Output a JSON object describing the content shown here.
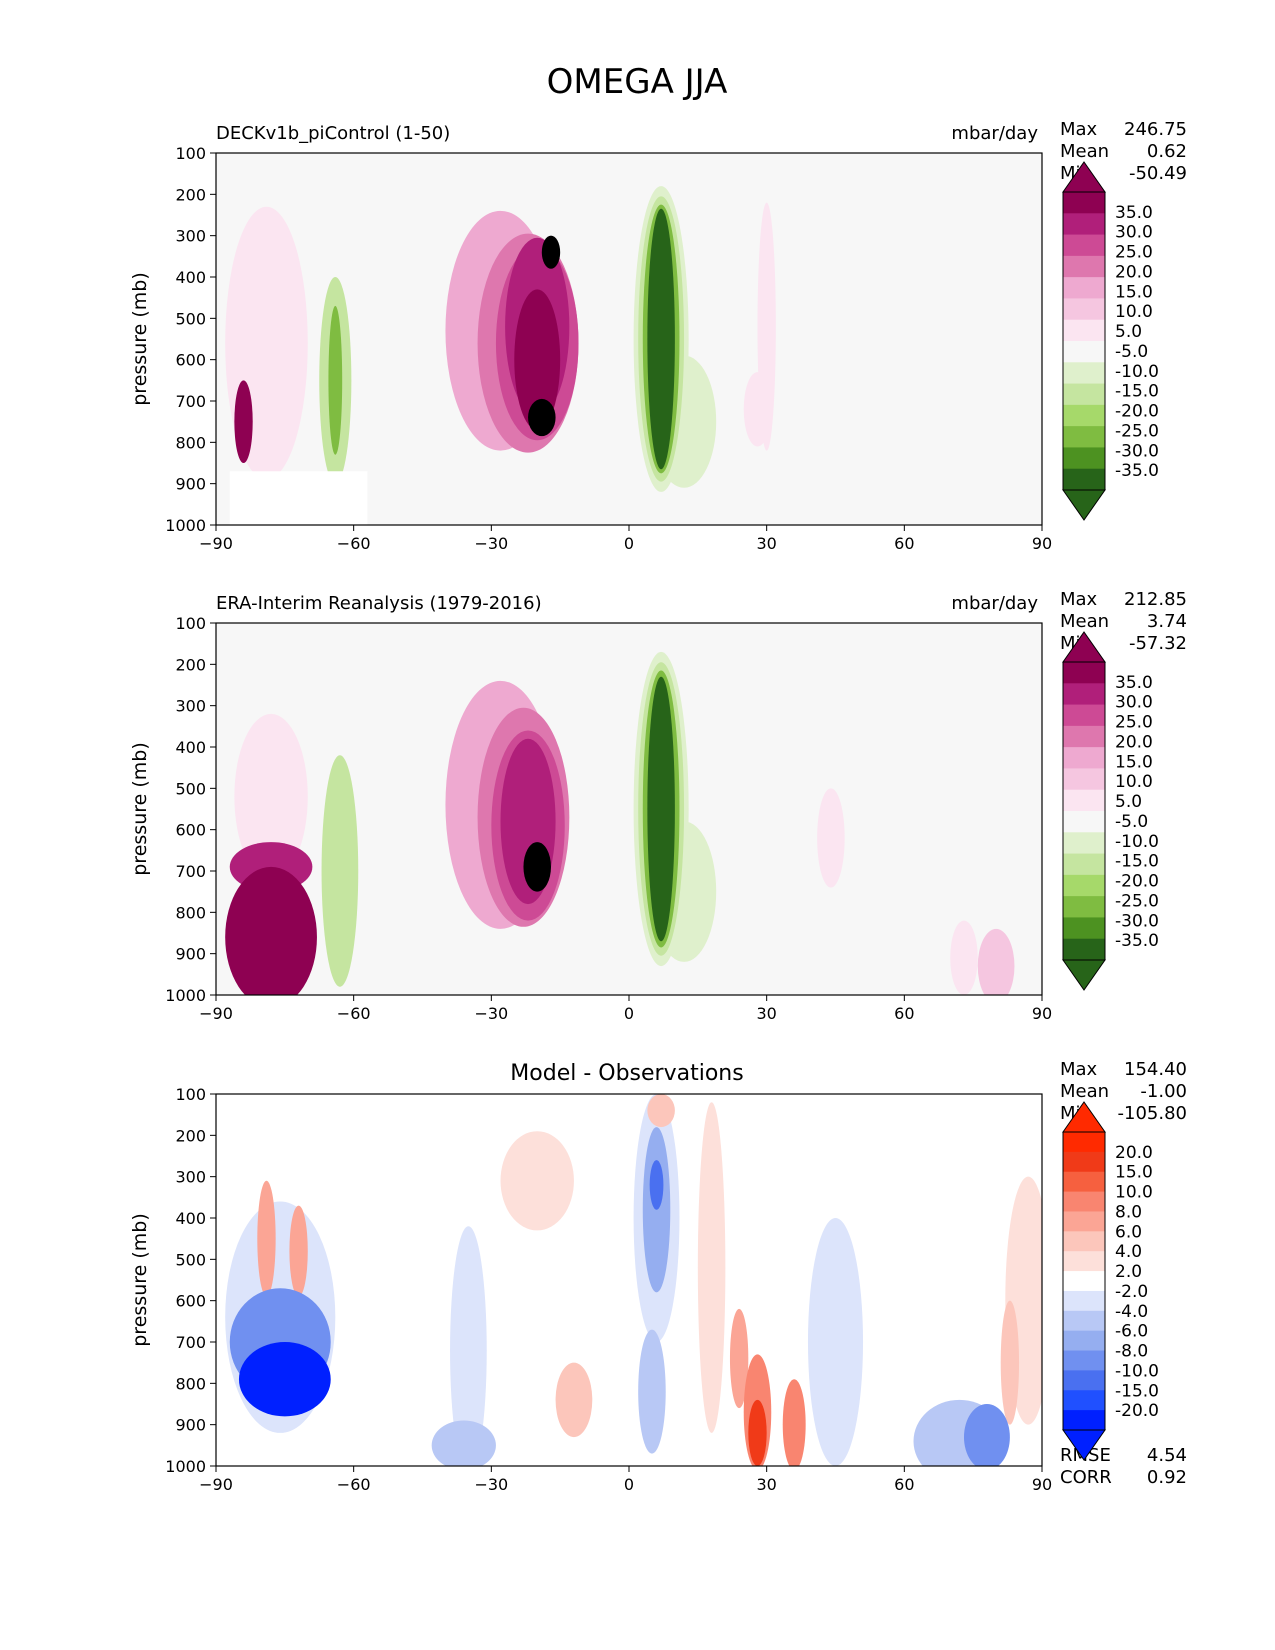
{
  "title": "OMEGA JJA",
  "colors": {
    "model_levels": [
      "#276419",
      "#4d9221",
      "#7fbc41",
      "#a6d96a",
      "#c5e5a0",
      "#dff0cc",
      "#f7f7f7",
      "#fbe5f1",
      "#f5c6e0",
      "#eea9d0",
      "#de77ae",
      "#cd4a95",
      "#b01f7a",
      "#8e0152"
    ],
    "diff_levels": [
      "#0020ff",
      "#2050ff",
      "#4a70f0",
      "#7090f0",
      "#95aef0",
      "#b8c8f5",
      "#dce4fb",
      "#ffffff",
      "#fde0da",
      "#fcc6bb",
      "#fba595",
      "#f98570",
      "#f6603f",
      "#f03a18",
      "#ff2a00"
    ]
  },
  "chart_data": [
    {
      "type": "heatmap",
      "title": "DECKv1b_piControl (1-50)",
      "units": "mbar/day",
      "ylabel": "pressure (mb)",
      "xlim": [
        -90,
        90
      ],
      "ylim": [
        1000,
        100
      ],
      "x_ticks": [
        "−90",
        "−60",
        "−30",
        "0",
        "30",
        "60",
        "90"
      ],
      "y_ticks": [
        "100",
        "200",
        "300",
        "400",
        "500",
        "600",
        "700",
        "800",
        "900",
        "1000"
      ],
      "stats": [
        {
          "label": "Max",
          "value": "246.75"
        },
        {
          "label": "Mean",
          "value": "0.62"
        },
        {
          "label": "Min",
          "value": "-50.49"
        }
      ],
      "colorbar_labels": [
        "35.0",
        "30.0",
        "25.0",
        "20.0",
        "15.0",
        "10.0",
        "5.0",
        "-5.0",
        "-10.0",
        "-15.0",
        "-20.0",
        "-25.0",
        "-30.0",
        "-35.0"
      ],
      "blobs": [
        {
          "lat": -28,
          "lev": 530,
          "rlat": 12,
          "rlev": 290,
          "level": 3
        },
        {
          "lat": -22,
          "lev": 560,
          "rlat": 11,
          "rlev": 265,
          "level": 4
        },
        {
          "lat": -20,
          "lev": 560,
          "rlat": 9,
          "rlev": 235,
          "level": 5
        },
        {
          "lat": -20,
          "lev": 520,
          "rlat": 7,
          "rlev": 215,
          "level": 6
        },
        {
          "lat": -20,
          "lev": 600,
          "rlat": 5,
          "rlev": 170,
          "level": 7
        },
        {
          "lat": -19,
          "lev": 740,
          "rlat": 3,
          "rlev": 45,
          "level": 9
        },
        {
          "lat": -17,
          "lev": 340,
          "rlat": 2,
          "rlev": 40,
          "level": 9
        },
        {
          "lat": 7,
          "lev": 560,
          "rlat": 8,
          "rlev": 400,
          "level": -1
        },
        {
          "lat": 7,
          "lev": 550,
          "rlat": 6,
          "rlev": 370,
          "level": -2
        },
        {
          "lat": 7,
          "lev": 550,
          "rlat": 5,
          "rlev": 345,
          "level": -3
        },
        {
          "lat": 7,
          "lev": 550,
          "rlat": 4,
          "rlev": 325,
          "level": -5
        },
        {
          "lat": 7,
          "lev": 550,
          "rlat": 3,
          "rlev": 315,
          "level": -7
        },
        {
          "lat": 12,
          "lev": 750,
          "rlat": 7,
          "rlev": 160,
          "level": -2
        },
        {
          "lat": -64,
          "lev": 580,
          "rlat": 6,
          "rlev": 330,
          "level": -1
        },
        {
          "lat": -64,
          "lev": 650,
          "rlat": 3.5,
          "rlev": 250,
          "level": -3
        },
        {
          "lat": -64,
          "lev": 650,
          "rlat": 1.5,
          "rlev": 180,
          "level": -5
        },
        {
          "lat": -79,
          "lev": 560,
          "rlat": 9,
          "rlev": 330,
          "level": 1
        },
        {
          "lat": -84,
          "lev": 750,
          "rlat": 2,
          "rlev": 100,
          "level": 7
        },
        {
          "lat": -50,
          "lev": 960,
          "rlat": 8,
          "rlev": 40,
          "level": -1
        },
        {
          "lat": 58,
          "lev": 660,
          "rlat": 5,
          "rlev": 340,
          "level": -1
        },
        {
          "lat": 30,
          "lev": 520,
          "rlat": 2,
          "rlev": 300,
          "level": 1
        },
        {
          "lat": 28,
          "lev": 720,
          "rlat": 3,
          "rlev": 90,
          "level": 1
        }
      ]
    },
    {
      "type": "heatmap",
      "title": "ERA-Interim Reanalysis (1979-2016)",
      "units": "mbar/day",
      "ylabel": "pressure (mb)",
      "xlim": [
        -90,
        90
      ],
      "ylim": [
        1000,
        100
      ],
      "x_ticks": [
        "−90",
        "−60",
        "−30",
        "0",
        "30",
        "60",
        "90"
      ],
      "y_ticks": [
        "100",
        "200",
        "300",
        "400",
        "500",
        "600",
        "700",
        "800",
        "900",
        "1000"
      ],
      "stats": [
        {
          "label": "Max",
          "value": "212.85"
        },
        {
          "label": "Mean",
          "value": "3.74"
        },
        {
          "label": "Min",
          "value": "-57.32"
        }
      ],
      "colorbar_labels": [
        "35.0",
        "30.0",
        "25.0",
        "20.0",
        "15.0",
        "10.0",
        "5.0",
        "-5.0",
        "-10.0",
        "-15.0",
        "-20.0",
        "-25.0",
        "-30.0",
        "-35.0"
      ],
      "blobs": [
        {
          "lat": -28,
          "lev": 540,
          "rlat": 12,
          "rlev": 300,
          "level": 3
        },
        {
          "lat": -23,
          "lev": 570,
          "rlat": 10,
          "rlev": 265,
          "level": 4
        },
        {
          "lat": -22,
          "lev": 590,
          "rlat": 8,
          "rlev": 230,
          "level": 5
        },
        {
          "lat": -22,
          "lev": 580,
          "rlat": 6,
          "rlev": 200,
          "level": 6
        },
        {
          "lat": -20,
          "lev": 690,
          "rlat": 3,
          "rlev": 60,
          "level": 9
        },
        {
          "lat": 7,
          "lev": 560,
          "rlat": 8,
          "rlev": 410,
          "level": -1
        },
        {
          "lat": 7,
          "lev": 550,
          "rlat": 6,
          "rlev": 380,
          "level": -2
        },
        {
          "lat": 7,
          "lev": 550,
          "rlat": 5,
          "rlev": 355,
          "level": -3
        },
        {
          "lat": 7,
          "lev": 550,
          "rlat": 4,
          "rlev": 335,
          "level": -5
        },
        {
          "lat": 7,
          "lev": 550,
          "rlat": 3,
          "rlev": 320,
          "level": -7
        },
        {
          "lat": 12,
          "lev": 750,
          "rlat": 7,
          "rlev": 170,
          "level": -2
        },
        {
          "lat": -62,
          "lev": 650,
          "rlat": 7,
          "rlev": 380,
          "level": -1
        },
        {
          "lat": -63,
          "lev": 700,
          "rlat": 4,
          "rlev": 280,
          "level": -3
        },
        {
          "lat": -78,
          "lev": 520,
          "rlat": 8,
          "rlev": 200,
          "level": 1
        },
        {
          "lat": -78,
          "lev": 860,
          "rlat": 10,
          "rlev": 170,
          "level": 7
        },
        {
          "lat": -78,
          "lev": 690,
          "rlat": 9,
          "rlev": 60,
          "level": 6
        },
        {
          "lat": 63,
          "lev": 580,
          "rlat": 2,
          "rlev": 80,
          "level": -1
        },
        {
          "lat": 80,
          "lev": 930,
          "rlat": 4,
          "rlev": 90,
          "level": 2
        },
        {
          "lat": 73,
          "lev": 910,
          "rlat": 3,
          "rlev": 90,
          "level": 1
        },
        {
          "lat": 44,
          "lev": 620,
          "rlat": 3,
          "rlev": 120,
          "level": 1
        }
      ]
    },
    {
      "type": "heatmap",
      "title": "Model - Observations",
      "ylabel": "pressure (mb)",
      "xlim": [
        -90,
        90
      ],
      "ylim": [
        1000,
        100
      ],
      "x_ticks": [
        "−90",
        "−60",
        "−30",
        "0",
        "30",
        "60",
        "90"
      ],
      "y_ticks": [
        "100",
        "200",
        "300",
        "400",
        "500",
        "600",
        "700",
        "800",
        "900",
        "1000"
      ],
      "stats": [
        {
          "label": "Max",
          "value": "154.40"
        },
        {
          "label": "Mean",
          "value": "-1.00"
        },
        {
          "label": "Min",
          "value": "-105.80"
        }
      ],
      "metrics": [
        {
          "label": "RMSE",
          "value": "4.54"
        },
        {
          "label": "CORR",
          "value": "0.92"
        }
      ],
      "colorbar_labels": [
        "20.0",
        "15.0",
        "10.0",
        "8.0",
        "6.0",
        "4.0",
        "2.0",
        "-2.0",
        "-4.0",
        "-6.0",
        "-8.0",
        "-10.0",
        "-15.0",
        "-20.0"
      ],
      "blobs": [
        {
          "lat": -75,
          "lev": 790,
          "rlat": 10,
          "rlev": 90,
          "level": -7
        },
        {
          "lat": -76,
          "lev": 700,
          "rlat": 11,
          "rlev": 130,
          "level": -4
        },
        {
          "lat": -76,
          "lev": 640,
          "rlat": 12,
          "rlev": 280,
          "level": -1
        },
        {
          "lat": -79,
          "lev": 450,
          "rlat": 2,
          "rlev": 140,
          "level": 3
        },
        {
          "lat": -72,
          "lev": 480,
          "rlat": 2,
          "rlev": 110,
          "level": 3
        },
        {
          "lat": 6,
          "lev": 400,
          "rlat": 5,
          "rlev": 300,
          "level": -1
        },
        {
          "lat": 6,
          "lev": 380,
          "rlat": 3,
          "rlev": 200,
          "level": -3
        },
        {
          "lat": 6,
          "lev": 320,
          "rlat": 1.5,
          "rlev": 60,
          "level": -5
        },
        {
          "lat": 5,
          "lev": 820,
          "rlat": 3,
          "rlev": 150,
          "level": -2
        },
        {
          "lat": -35,
          "lev": 720,
          "rlat": 4,
          "rlev": 300,
          "level": -1
        },
        {
          "lat": -36,
          "lev": 950,
          "rlat": 7,
          "rlev": 60,
          "level": -2
        },
        {
          "lat": -20,
          "lev": 310,
          "rlat": 8,
          "rlev": 120,
          "level": 1
        },
        {
          "lat": -12,
          "lev": 840,
          "rlat": 4,
          "rlev": 90,
          "level": 2
        },
        {
          "lat": 18,
          "lev": 520,
          "rlat": 3,
          "rlev": 400,
          "level": 1
        },
        {
          "lat": 28,
          "lev": 870,
          "rlat": 3,
          "rlev": 140,
          "level": 4
        },
        {
          "lat": 28,
          "lev": 920,
          "rlat": 2,
          "rlev": 80,
          "level": 6
        },
        {
          "lat": 36,
          "lev": 900,
          "rlat": 2.5,
          "rlev": 110,
          "level": 4
        },
        {
          "lat": 7,
          "lev": 140,
          "rlat": 3,
          "rlev": 40,
          "level": 2
        },
        {
          "lat": 45,
          "lev": 700,
          "rlat": 6,
          "rlev": 300,
          "level": -1
        },
        {
          "lat": 78,
          "lev": 930,
          "rlat": 5,
          "rlev": 80,
          "level": -4
        },
        {
          "lat": 72,
          "lev": 940,
          "rlat": 10,
          "rlev": 100,
          "level": -2
        },
        {
          "lat": 87,
          "lev": 600,
          "rlat": 5,
          "rlev": 300,
          "level": 1
        },
        {
          "lat": 83,
          "lev": 750,
          "rlat": 2,
          "rlev": 150,
          "level": 2
        },
        {
          "lat": 24,
          "lev": 740,
          "rlat": 2,
          "rlev": 120,
          "level": 3
        }
      ]
    }
  ]
}
